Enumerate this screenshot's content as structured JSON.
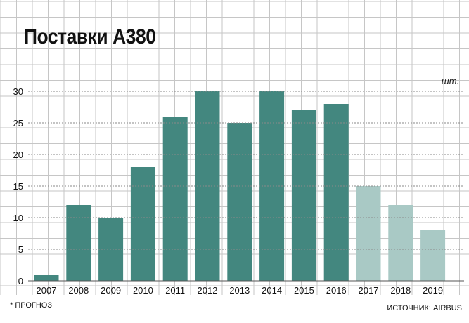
{
  "chart_data": {
    "type": "bar",
    "title": "Поставки А380",
    "unit_label": "шт.",
    "categories": [
      "2007",
      "2008",
      "2009",
      "2010",
      "2011",
      "2012",
      "2013",
      "2014",
      "2015",
      "2016",
      "2017",
      "2018",
      "2019"
    ],
    "values": [
      1,
      12,
      10,
      18,
      26,
      30,
      25,
      30,
      27,
      28,
      15,
      12,
      8
    ],
    "forecast": [
      false,
      false,
      false,
      false,
      false,
      false,
      false,
      false,
      false,
      false,
      true,
      true,
      true
    ],
    "ylim": [
      0,
      30
    ],
    "yticks": [
      0,
      5,
      10,
      15,
      20,
      25,
      30
    ],
    "grid": true,
    "colors": {
      "actual": "#43877f",
      "forecast": "#a9c9c5",
      "grid": "#c6c6c6",
      "dotted": "#8a8a8a"
    },
    "footnote": "* ПРОГНОЗ",
    "source": "ИСТОЧНИК: AIRBUS"
  }
}
